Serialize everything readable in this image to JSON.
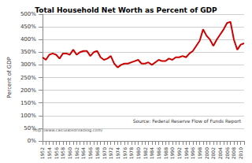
{
  "chart_data": {
    "type": "line",
    "title": "Total Household Net Worth as Percent of GDP",
    "y_label": "Percent of GDP",
    "annotations": [
      "Source: Federal Reserve Flow of Funds Report",
      "http://www.calculatedriskblog.com/"
    ],
    "categories": [
      "1952",
      null,
      "1954",
      null,
      "1956",
      null,
      "1958",
      null,
      "1960",
      null,
      "1962",
      null,
      "1964",
      null,
      "1966",
      null,
      "1968",
      null,
      "1970",
      null,
      "1972",
      null,
      "1974",
      null,
      "1976",
      null,
      "1978",
      null,
      "1980",
      null,
      "1982",
      null,
      "1984",
      null,
      "1986",
      null,
      "1988",
      null,
      "1990",
      null,
      "1992",
      null,
      "1994",
      null,
      "1996",
      null,
      "1998",
      null,
      "2000",
      null,
      "2002",
      null,
      "2004",
      null,
      "2006",
      null,
      "2008",
      null,
      "2010",
      null
    ],
    "values": [
      330,
      320,
      340,
      345,
      340,
      325,
      345,
      345,
      340,
      360,
      340,
      350,
      355,
      355,
      335,
      350,
      355,
      330,
      320,
      325,
      335,
      305,
      290,
      300,
      305,
      305,
      310,
      315,
      320,
      305,
      305,
      310,
      300,
      310,
      320,
      315,
      315,
      325,
      320,
      330,
      330,
      335,
      330,
      345,
      355,
      375,
      395,
      440,
      415,
      400,
      375,
      400,
      420,
      440,
      465,
      470,
      400,
      360,
      380,
      385
    ],
    "color": "#cc0000",
    "ylim": [
      0,
      500
    ],
    "yticks": [
      {
        "value": 0,
        "label": "0%"
      },
      {
        "value": 50,
        "label": "50%"
      },
      {
        "value": 100,
        "label": "100%"
      },
      {
        "value": 150,
        "label": "150%"
      },
      {
        "value": 200,
        "label": "200%"
      },
      {
        "value": 250,
        "label": "250%"
      },
      {
        "value": 300,
        "label": "300%"
      },
      {
        "value": 350,
        "label": "350%"
      },
      {
        "value": 400,
        "label": "400%"
      },
      {
        "value": 450,
        "label": "450%"
      },
      {
        "value": 500,
        "label": "500%"
      }
    ],
    "grid": true
  }
}
